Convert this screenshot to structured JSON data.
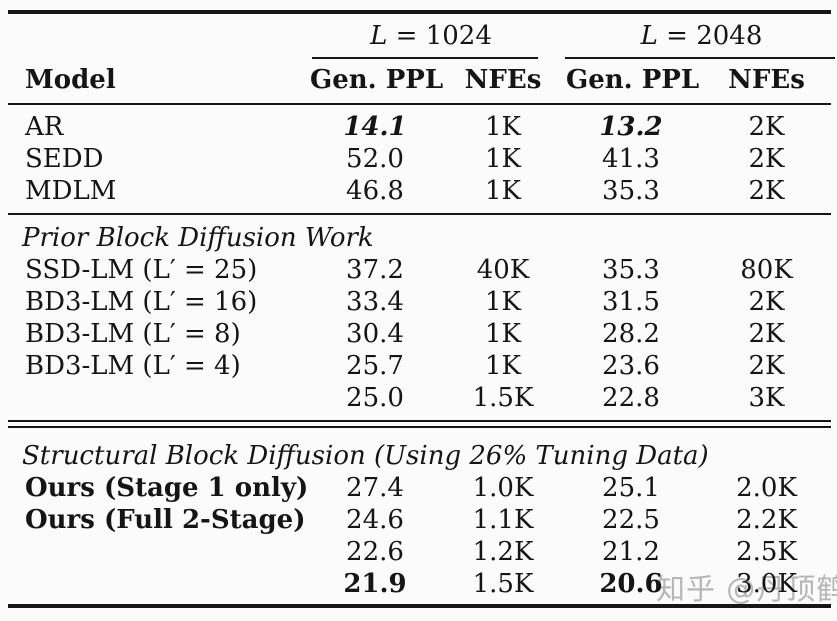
{
  "page": {
    "background": "#fbfbfb",
    "text_color": "#151515",
    "rule_color": "#161616",
    "watermark_color": "#a9a9a9"
  },
  "table": {
    "column_groups": [
      {
        "label": "L = 1024"
      },
      {
        "label": "L = 2048"
      }
    ],
    "column_headers": {
      "model": "Model",
      "gen_ppl_1": "Gen. PPL",
      "nfes_1": "NFEs",
      "gen_ppl_2": "Gen. PPL",
      "nfes_2": "NFEs"
    },
    "sections": [
      {
        "title": "",
        "rows": [
          {
            "label": "AR",
            "label_style": "",
            "values": [
              "14.1",
              "1K",
              "13.2",
              "2K"
            ],
            "value_styles": [
              "bi",
              "",
              "bi",
              ""
            ]
          },
          {
            "label": "SEDD",
            "label_style": "",
            "values": [
              "52.0",
              "1K",
              "41.3",
              "2K"
            ],
            "value_styles": [
              "",
              "",
              "",
              ""
            ]
          },
          {
            "label": "MDLM",
            "label_style": "",
            "values": [
              "46.8",
              "1K",
              "35.3",
              "2K"
            ],
            "value_styles": [
              "",
              "",
              "",
              ""
            ]
          }
        ]
      },
      {
        "title": "Prior Block Diffusion Work",
        "rows": [
          {
            "label": "SSD-LM (L′ = 25)",
            "label_style": "",
            "values": [
              "37.2",
              "40K",
              "35.3",
              "80K"
            ],
            "value_styles": [
              "",
              "",
              "",
              ""
            ]
          },
          {
            "label": "BD3-LM (L′ = 16)",
            "label_style": "",
            "values": [
              "33.4",
              "1K",
              "31.5",
              "2K"
            ],
            "value_styles": [
              "",
              "",
              "",
              ""
            ]
          },
          {
            "label": "BD3-LM (L′ = 8)",
            "label_style": "",
            "values": [
              "30.4",
              "1K",
              "28.2",
              "2K"
            ],
            "value_styles": [
              "",
              "",
              "",
              ""
            ]
          },
          {
            "label": "BD3-LM (L′ = 4)",
            "label_style": "",
            "values": [
              "25.7",
              "1K",
              "23.6",
              "2K"
            ],
            "value_styles": [
              "",
              "",
              "",
              ""
            ]
          },
          {
            "label": "",
            "label_style": "",
            "values": [
              "25.0",
              "1.5K",
              "22.8",
              "3K"
            ],
            "value_styles": [
              "",
              "",
              "",
              ""
            ]
          }
        ]
      },
      {
        "title": "Structural Block Diffusion (Using 26% Tuning Data)",
        "rows": [
          {
            "label": "Ours (Stage 1 only)",
            "label_style": "bold",
            "values": [
              "27.4",
              "1.0K",
              "25.1",
              "2.0K"
            ],
            "value_styles": [
              "",
              "",
              "",
              ""
            ]
          },
          {
            "label": "Ours (Full 2-Stage)",
            "label_style": "bold",
            "values": [
              "24.6",
              "1.1K",
              "22.5",
              "2.2K"
            ],
            "value_styles": [
              "",
              "",
              "",
              ""
            ]
          },
          {
            "label": "",
            "label_style": "",
            "values": [
              "22.6",
              "1.2K",
              "21.2",
              "2.5K"
            ],
            "value_styles": [
              "",
              "",
              "",
              ""
            ]
          },
          {
            "label": "",
            "label_style": "",
            "values": [
              "21.9",
              "1.5K",
              "20.6",
              "3.0K"
            ],
            "value_styles": [
              "bold",
              "",
              "bold",
              ""
            ]
          }
        ]
      }
    ],
    "watermark": {
      "text": "知乎 @丹顶鹤"
    }
  }
}
